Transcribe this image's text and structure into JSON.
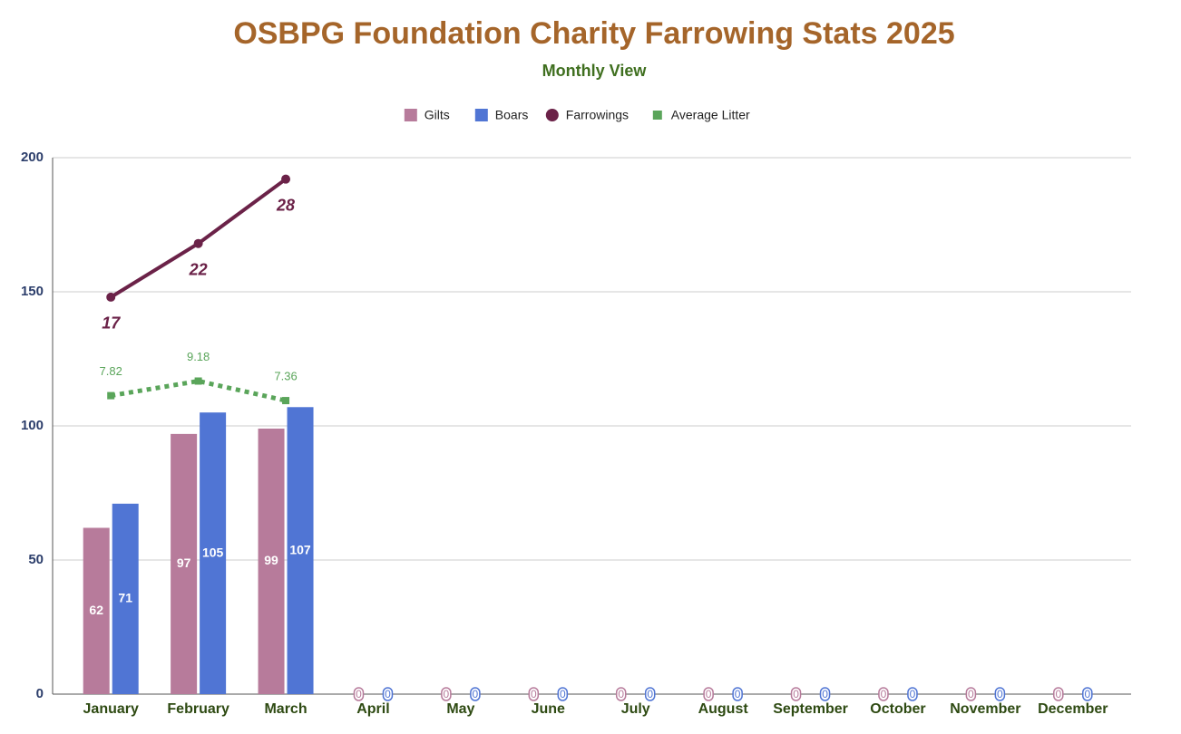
{
  "chart_data": {
    "type": "combo",
    "title": "OSBPG Foundation Charity Farrowing Stats 2025",
    "subtitle": "Monthly View",
    "categories": [
      "January",
      "February",
      "March",
      "April",
      "May",
      "June",
      "July",
      "August",
      "September",
      "October",
      "November",
      "December"
    ],
    "series": [
      {
        "name": "Gilts",
        "type": "bar",
        "color": "#b77b9b",
        "values": [
          62,
          97,
          99,
          0,
          0,
          0,
          0,
          0,
          0,
          0,
          0,
          0
        ]
      },
      {
        "name": "Boars",
        "type": "bar",
        "color": "#5075d4",
        "values": [
          71,
          105,
          107,
          0,
          0,
          0,
          0,
          0,
          0,
          0,
          0,
          0
        ]
      },
      {
        "name": "Farrowings",
        "type": "line",
        "axis": "y2",
        "color": "#6b2248",
        "values": [
          17,
          22,
          28,
          null,
          null,
          null,
          null,
          null,
          null,
          null,
          null,
          null
        ]
      },
      {
        "name": "Average Litter",
        "type": "line",
        "axis": "y2",
        "color": "#5aa55a",
        "dashed": true,
        "values": [
          7.82,
          9.18,
          7.36,
          null,
          null,
          null,
          null,
          null,
          null,
          null,
          null,
          null
        ]
      }
    ],
    "ylim": [
      0,
      200
    ],
    "yticks": [
      0,
      50,
      100,
      150,
      200
    ],
    "y2lim": [
      -20,
      30
    ],
    "grid": true,
    "legend": "top"
  }
}
